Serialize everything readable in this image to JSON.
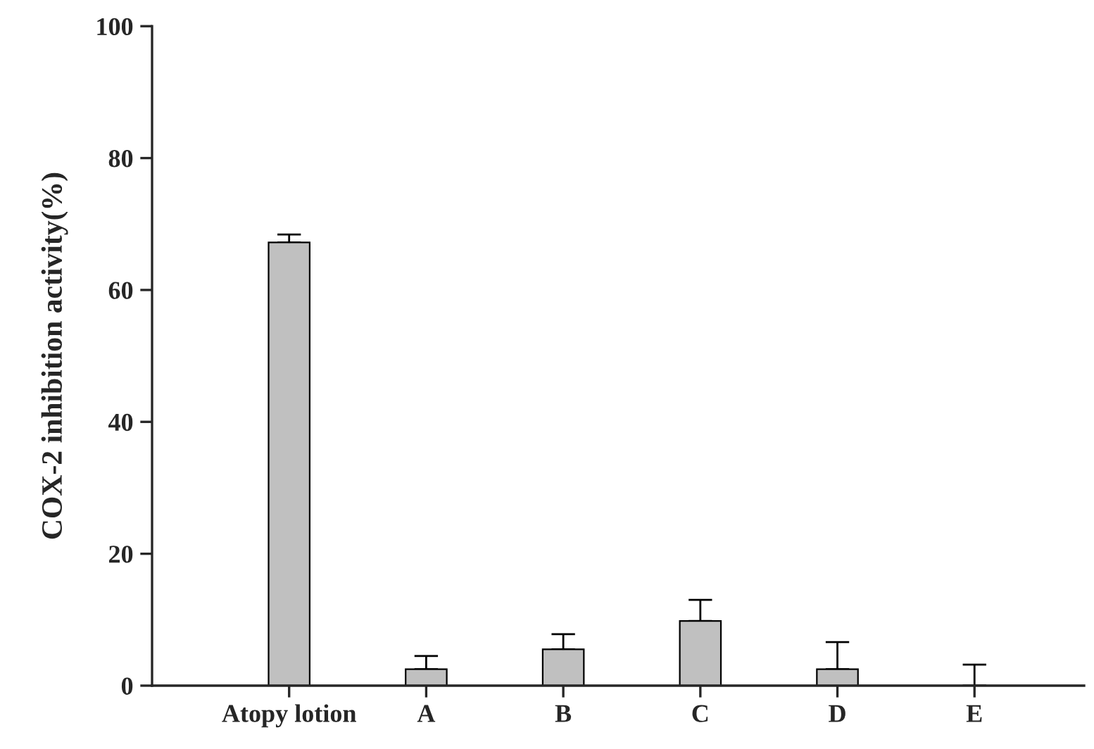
{
  "chart_data": {
    "type": "bar",
    "ylabel": "COX-2 inhibition activity(%)",
    "categories": [
      "Atopy lotion",
      "A",
      "B",
      "C",
      "D",
      "E"
    ],
    "values": [
      67.2,
      2.5,
      5.5,
      9.8,
      2.5,
      0
    ],
    "errors": [
      [
        67.2,
        68.4
      ],
      [
        2.5,
        4.5
      ],
      [
        5.5,
        7.8
      ],
      [
        9.8,
        13.0
      ],
      [
        2.5,
        6.6
      ],
      [
        0,
        3.2
      ]
    ],
    "color": "#c0c0c0",
    "ylim": [
      0,
      100
    ],
    "yticks": [
      0,
      20,
      40,
      60,
      80,
      100
    ],
    "grid": false,
    "legend": false
  }
}
